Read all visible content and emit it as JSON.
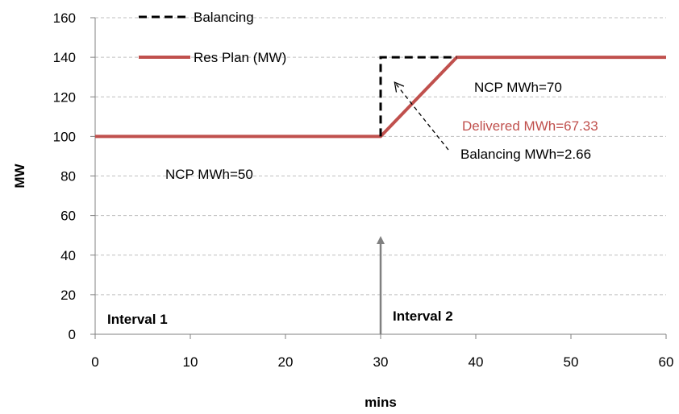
{
  "chart_data": {
    "type": "line",
    "title": "",
    "xlabel": "mins",
    "ylabel": "MW",
    "xlim": [
      0,
      60
    ],
    "ylim": [
      0,
      160
    ],
    "x_ticks": [
      0,
      10,
      20,
      30,
      40,
      50,
      60
    ],
    "y_ticks": [
      0,
      20,
      40,
      60,
      80,
      100,
      120,
      140,
      160
    ],
    "grid": "horizontal dashed",
    "legend_position": "top-left",
    "series": [
      {
        "name": "Balancing",
        "style": "dashed",
        "color": "#000000",
        "points": [
          [
            30,
            100
          ],
          [
            30,
            140
          ],
          [
            38,
            140
          ]
        ]
      },
      {
        "name": "Res Plan (MW)",
        "style": "solid",
        "color": "#c0504d",
        "points": [
          [
            0,
            100
          ],
          [
            30,
            100
          ],
          [
            38,
            140
          ],
          [
            60,
            140
          ]
        ]
      }
    ],
    "annotations": {
      "ncp_1": "NCP MWh=50",
      "ncp_2": "NCP MWh=70",
      "delivered": "Delivered MWh=67.33",
      "balancing": "Balancing MWh=2.66",
      "interval_1": "Interval 1",
      "interval_2": "Interval 2"
    },
    "interval_marker_x": 30,
    "colors": {
      "res_plan": "#c0504d",
      "balancing": "#000000",
      "interval_arrow": "#808080",
      "grid": "#bfbfbf",
      "delivered_text": "#c0504d"
    }
  }
}
